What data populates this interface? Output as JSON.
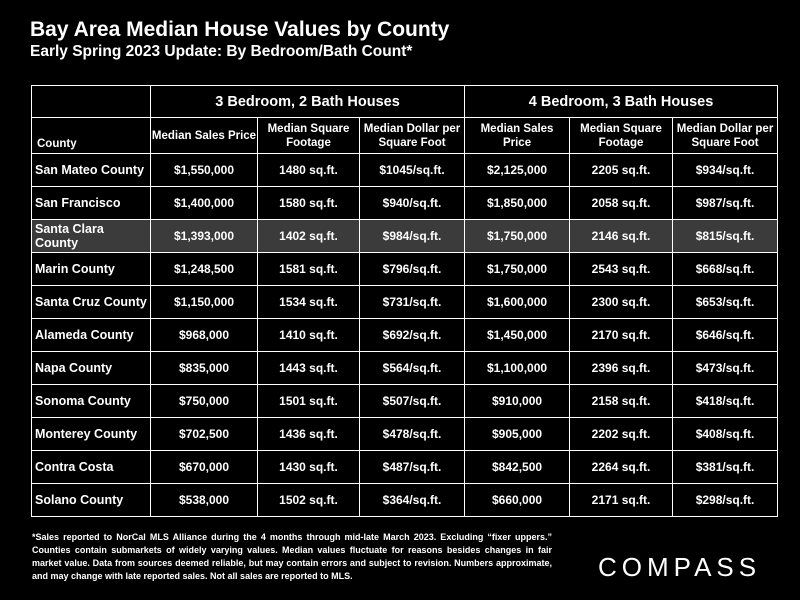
{
  "title": "Bay Area Median House Values by County",
  "subtitle": "Early Spring 2023 Update:  By Bedroom/Bath Count*",
  "table": {
    "group1": "3 Bedroom, 2 Bath Houses",
    "group2": "4 Bedroom, 3 Bath Houses",
    "county_header": "County",
    "col_headers": [
      "Median Sales Price",
      "Median Square Footage",
      "Median Dollar per Square Foot",
      "Median Sales Price",
      "Median Square Footage",
      "Median Dollar per Square Foot"
    ],
    "rows": [
      [
        "San Mateo County",
        "$1,550,000",
        "1480 sq.ft.",
        "$1045/sq.ft.",
        "$2,125,000",
        "2205 sq.ft.",
        "$934/sq.ft."
      ],
      [
        "San Francisco",
        "$1,400,000",
        "1580 sq.ft.",
        "$940/sq.ft.",
        "$1,850,000",
        "2058 sq.ft.",
        "$987/sq.ft."
      ],
      [
        "Santa Clara County",
        "$1,393,000",
        "1402 sq.ft.",
        "$984/sq.ft.",
        "$1,750,000",
        "2146 sq.ft.",
        "$815/sq.ft."
      ],
      [
        "Marin County",
        "$1,248,500",
        "1581 sq.ft.",
        "$796/sq.ft.",
        "$1,750,000",
        "2543 sq.ft.",
        "$668/sq.ft."
      ],
      [
        "Santa Cruz County",
        "$1,150,000",
        "1534 sq.ft.",
        "$731/sq.ft.",
        "$1,600,000",
        "2300 sq.ft.",
        "$653/sq.ft."
      ],
      [
        "Alameda County",
        "$968,000",
        "1410 sq.ft.",
        "$692/sq.ft.",
        "$1,450,000",
        "2170 sq.ft.",
        "$646/sq.ft."
      ],
      [
        "Napa County",
        "$835,000",
        "1443 sq.ft.",
        "$564/sq.ft.",
        "$1,100,000",
        "2396 sq.ft.",
        "$473/sq.ft."
      ],
      [
        "Sonoma County",
        "$750,000",
        "1501 sq.ft.",
        "$507/sq.ft.",
        "$910,000",
        "2158 sq.ft.",
        "$418/sq.ft."
      ],
      [
        "Monterey County",
        "$702,500",
        "1436 sq.ft.",
        "$478/sq.ft.",
        "$905,000",
        "2202 sq.ft.",
        "$408/sq.ft."
      ],
      [
        "Contra Costa",
        "$670,000",
        "1430 sq.ft.",
        "$487/sq.ft.",
        "$842,500",
        "2264 sq.ft.",
        "$381/sq.ft."
      ],
      [
        "Solano County",
        "$538,000",
        "1502 sq.ft.",
        "$364/sq.ft.",
        "$660,000",
        "2171 sq.ft.",
        "$298/sq.ft."
      ]
    ],
    "highlight_row": "Santa Clara County",
    "highlight_color": "#3b3b3b"
  },
  "footnote": "*Sales reported to NorCal MLS Alliance during the 4 months through mid-late March 2023. Excluding “fixer uppers.” Counties contain submarkets of widely varying values. Median values fluctuate for reasons besides changes in fair market value. Data from sources deemed reliable, but may contain errors and subject to revision.  Numbers approximate, and may change with late reported sales. Not all sales are reported to MLS.",
  "logo": "COMPASS",
  "colors": {
    "background": "#000000",
    "text": "#ffffff",
    "grid": "#ffffff"
  }
}
